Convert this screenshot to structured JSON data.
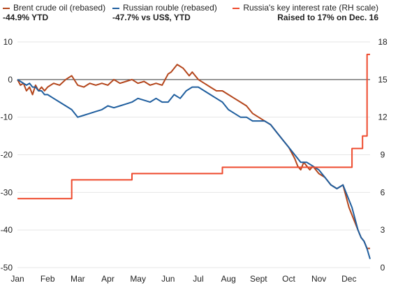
{
  "colors": {
    "brent": "#b4461c",
    "rouble": "#1f5e9e",
    "rate": "#ee4a2d",
    "grid": "#e6e6e6",
    "zero": "#333333",
    "text": "#222222"
  },
  "legend": {
    "brent_label": "Brent crude oil (rebased)",
    "brent_sub": "-44.9% YTD",
    "rouble_label": "Russian rouble (rebased)",
    "rouble_sub": "-47.7% vs US$, YTD",
    "rate_label": "Russia's key interest rate (RH scale)",
    "rate_sub": "Raised to 17% on Dec. 16"
  },
  "chart_data": {
    "type": "line",
    "x_axis": {
      "categories": [
        "Jan",
        "Feb",
        "Mar",
        "Apr",
        "May",
        "Jun",
        "Jul",
        "Aug",
        "Sept",
        "Oct",
        "Nov",
        "Dec"
      ]
    },
    "y_left": {
      "ylim": [
        -50,
        10
      ],
      "ticks": [
        -50,
        -40,
        -30,
        -20,
        -10,
        0,
        10
      ]
    },
    "y_right": {
      "ylim": [
        0,
        18
      ],
      "ticks": [
        0,
        3,
        6,
        9,
        12,
        15,
        18
      ]
    },
    "series": [
      {
        "name": "Brent crude oil (rebased)",
        "axis": "left",
        "x": [
          0,
          0.1,
          0.2,
          0.3,
          0.4,
          0.5,
          0.6,
          0.7,
          0.8,
          0.9,
          1.0,
          1.2,
          1.4,
          1.6,
          1.8,
          2.0,
          2.2,
          2.4,
          2.6,
          2.8,
          3.0,
          3.2,
          3.4,
          3.6,
          3.8,
          4.0,
          4.2,
          4.4,
          4.6,
          4.8,
          5.0,
          5.1,
          5.2,
          5.3,
          5.4,
          5.5,
          5.6,
          5.7,
          5.8,
          6.0,
          6.2,
          6.4,
          6.6,
          6.8,
          7.0,
          7.2,
          7.4,
          7.6,
          7.8,
          8.0,
          8.2,
          8.4,
          8.6,
          8.8,
          9.0,
          9.2,
          9.3,
          9.4,
          9.5,
          9.6,
          9.7,
          9.8,
          10.0,
          10.2,
          10.4,
          10.6,
          10.8,
          11.0,
          11.1,
          11.2,
          11.3,
          11.4,
          11.5,
          11.6,
          11.7
        ],
        "values": [
          0,
          -1.5,
          -1,
          -3,
          -2,
          -4,
          -1.5,
          -3,
          -2,
          -3,
          -2,
          -1,
          -1.5,
          0,
          1,
          -1.5,
          -2,
          -1,
          -1.5,
          -1,
          -1.5,
          0,
          -1,
          -0.5,
          0,
          -1,
          -0.5,
          -1.5,
          -1,
          -1.5,
          1.5,
          2,
          3,
          4,
          3.5,
          3,
          2,
          1,
          2,
          0,
          -1,
          -2,
          -3,
          -3,
          -4,
          -5,
          -6,
          -7,
          -9,
          -10,
          -11,
          -12,
          -14,
          -16,
          -18,
          -21,
          -23,
          -24,
          -22,
          -23,
          -24,
          -23,
          -25,
          -26,
          -28,
          -29,
          -28,
          -34,
          -36,
          -38,
          -40,
          -42,
          -43,
          -44.9,
          -44.9
        ]
      },
      {
        "name": "Russian rouble (rebased)",
        "axis": "left",
        "x": [
          0,
          0.1,
          0.2,
          0.3,
          0.4,
          0.5,
          0.6,
          0.7,
          0.8,
          0.9,
          1.0,
          1.2,
          1.4,
          1.6,
          1.8,
          2.0,
          2.2,
          2.4,
          2.6,
          2.8,
          3.0,
          3.2,
          3.4,
          3.6,
          3.8,
          4.0,
          4.2,
          4.4,
          4.6,
          4.8,
          5.0,
          5.2,
          5.4,
          5.6,
          5.8,
          6.0,
          6.2,
          6.4,
          6.6,
          6.8,
          7.0,
          7.2,
          7.4,
          7.6,
          7.8,
          8.0,
          8.2,
          8.4,
          8.6,
          8.8,
          9.0,
          9.2,
          9.4,
          9.6,
          9.8,
          10.0,
          10.2,
          10.4,
          10.6,
          10.8,
          11.0,
          11.1,
          11.2,
          11.3,
          11.4,
          11.5,
          11.6,
          11.7
        ],
        "values": [
          0,
          -0.5,
          -1,
          -1.5,
          -1,
          -2,
          -2,
          -3,
          -3,
          -4,
          -4,
          -5,
          -6,
          -7,
          -8,
          -10,
          -9.5,
          -9,
          -8.5,
          -8,
          -7,
          -7.5,
          -7,
          -6.5,
          -6,
          -5,
          -5.5,
          -6,
          -5,
          -6,
          -6,
          -4,
          -5,
          -3,
          -2,
          -2,
          -3,
          -4,
          -5,
          -6,
          -8,
          -9,
          -10,
          -10,
          -11,
          -11,
          -11,
          -12,
          -14,
          -16,
          -18,
          -20,
          -22,
          -22,
          -23,
          -24,
          -26,
          -28,
          -29,
          -28,
          -32,
          -34,
          -37,
          -40,
          -42,
          -43,
          -45,
          -47.7
        ]
      },
      {
        "name": "Russia's key interest rate (RH scale)",
        "axis": "right",
        "step": true,
        "x": [
          0,
          1.8,
          1.8,
          3.8,
          3.8,
          6.8,
          6.8,
          9.9,
          9.9,
          11.1,
          11.1,
          11.45,
          11.45,
          11.6,
          11.6,
          11.7
        ],
        "values": [
          5.5,
          5.5,
          7.0,
          7.0,
          7.5,
          7.5,
          8.0,
          8.0,
          8.0,
          8.0,
          9.5,
          9.5,
          10.5,
          10.5,
          17.0,
          17.0
        ]
      }
    ]
  }
}
